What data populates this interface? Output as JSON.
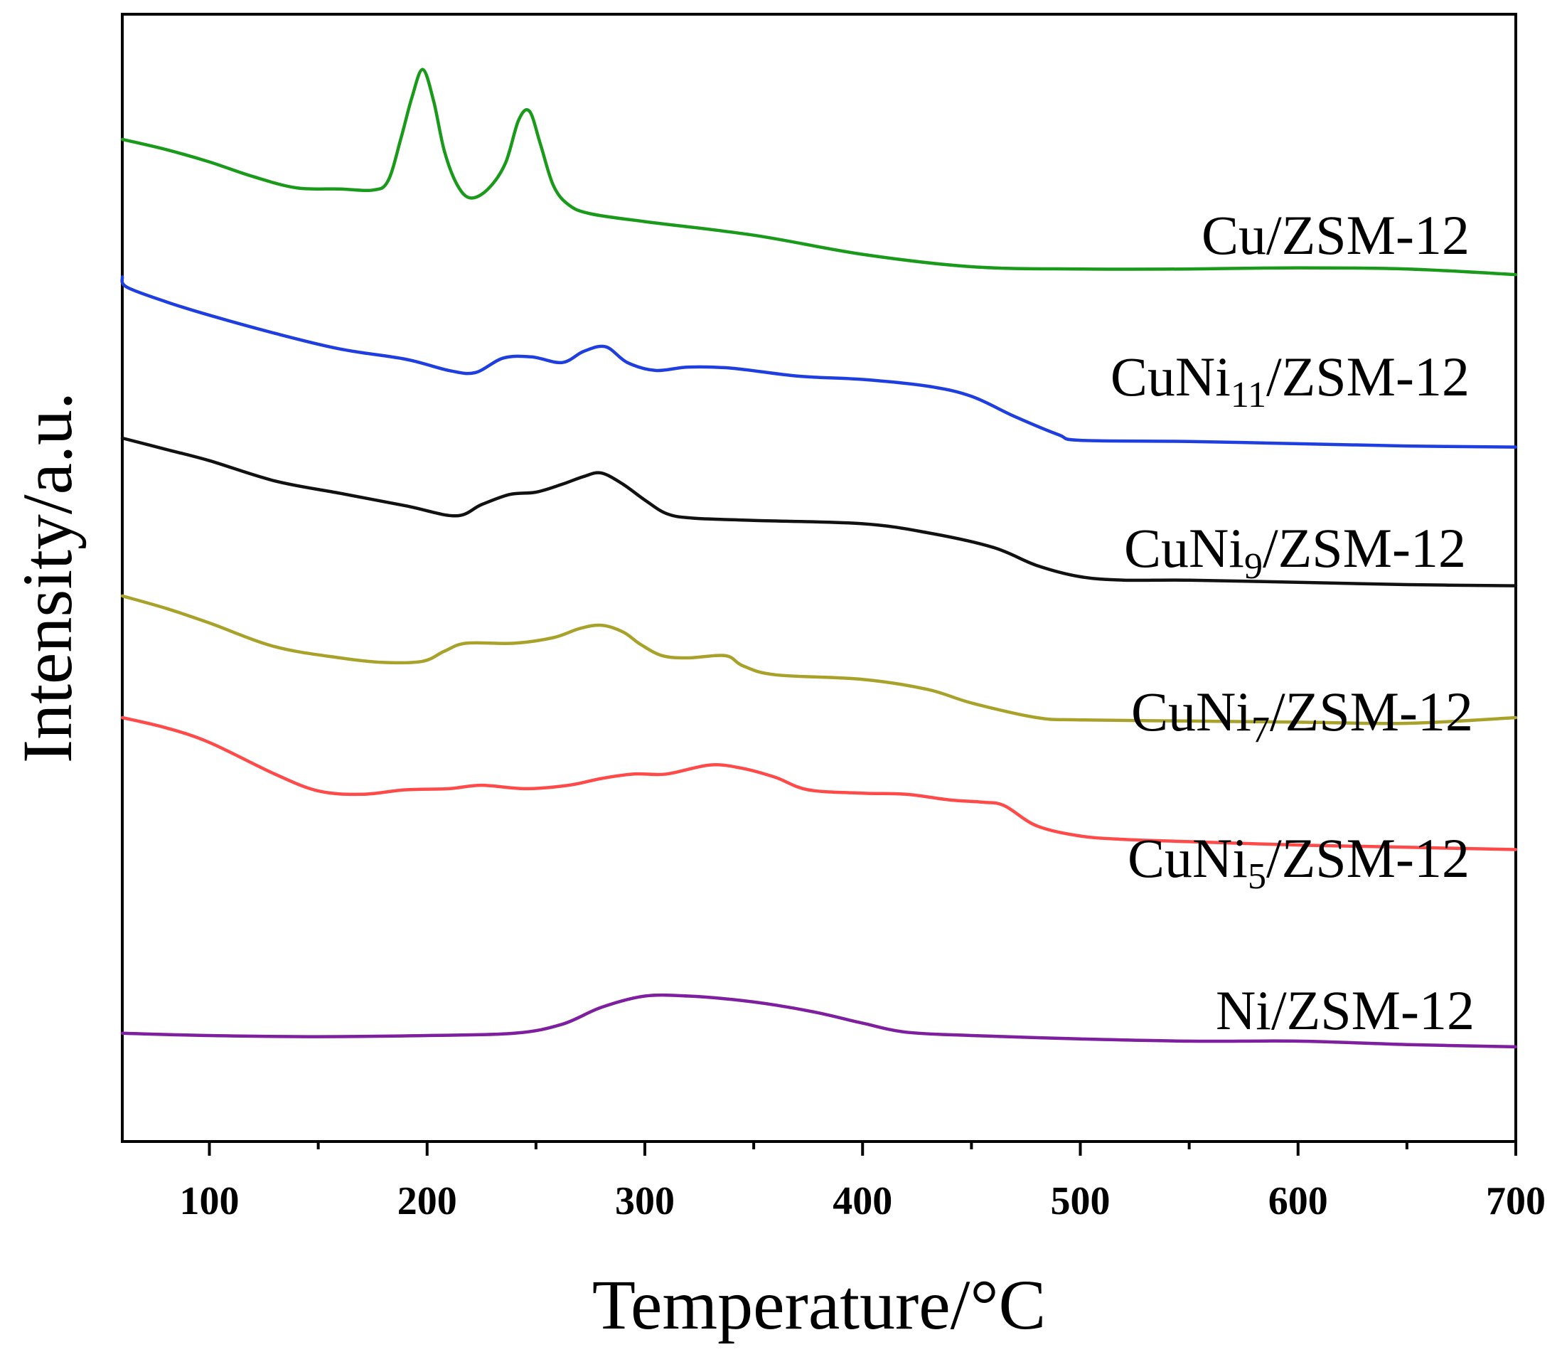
{
  "chart_data": {
    "type": "line",
    "title": "",
    "xlabel": "Temperature/°C",
    "ylabel": "Intensity/a.u.",
    "xlim": [
      60,
      700
    ],
    "ylim": [
      0,
      100
    ],
    "xticks": [
      100,
      200,
      300,
      400,
      500,
      600,
      700
    ],
    "xtick_labels": [
      "100",
      "200",
      "300",
      "400",
      "500",
      "600",
      "700"
    ],
    "minor_xticks": [
      150,
      250,
      350,
      450,
      550,
      650
    ],
    "grid": false,
    "legend": "inline labels at right of each curve",
    "series": [
      {
        "name": "Cu/ZSM-12",
        "label_main": "Cu/ZSM-12",
        "label_sub": "",
        "label_tail": "",
        "color": "#1a9a1a",
        "x": [
          60,
          80,
          100,
          120,
          140,
          160,
          175,
          182,
          188,
          193,
          198,
          203,
          208,
          214,
          220,
          228,
          236,
          242,
          247,
          252,
          258,
          265,
          275,
          300,
          350,
          400,
          450,
          500,
          550,
          600,
          650,
          700
        ],
        "y": [
          88.9,
          88.0,
          86.9,
          85.6,
          84.6,
          84.5,
          84.4,
          85.2,
          89.0,
          92.6,
          95.1,
          92.3,
          87.8,
          84.8,
          83.7,
          84.5,
          86.8,
          90.6,
          91.4,
          88.5,
          84.8,
          83.1,
          82.3,
          81.6,
          80.4,
          78.7,
          77.6,
          77.4,
          77.4,
          77.5,
          77.4,
          76.9
        ]
      },
      {
        "name": "CuNi11/ZSM-12",
        "label_main": "CuNi",
        "label_sub": "11",
        "label_tail": "/ZSM-12",
        "color": "#1e3ee0",
        "x": [
          60,
          62,
          80,
          100,
          130,
          160,
          190,
          210,
          222,
          235,
          248,
          262,
          272,
          282,
          292,
          305,
          320,
          340,
          370,
          400,
          430,
          450,
          470,
          490,
          500,
          550,
          600,
          650,
          700
        ],
        "y": [
          76.7,
          75.8,
          74.5,
          73.3,
          71.7,
          70.3,
          69.4,
          68.4,
          68.2,
          69.5,
          69.6,
          69.1,
          70.1,
          70.5,
          69.1,
          68.4,
          68.7,
          68.6,
          67.9,
          67.6,
          67.0,
          66.1,
          64.3,
          62.7,
          62.2,
          62.1,
          61.9,
          61.7,
          61.6
        ]
      },
      {
        "name": "CuNi9/ZSM-12",
        "label_main": "CuNi",
        "label_sub": "9",
        "label_tail": "/ZSM-12",
        "color": "#111111",
        "x": [
          60,
          80,
          100,
          130,
          160,
          190,
          213,
          225,
          238,
          250,
          262,
          272,
          280,
          290,
          300,
          310,
          322,
          350,
          400,
          430,
          460,
          480,
          500,
          520,
          550,
          600,
          650,
          700
        ],
        "y": [
          62.4,
          61.4,
          60.4,
          58.6,
          57.5,
          56.4,
          55.5,
          56.5,
          57.4,
          57.6,
          58.3,
          59.0,
          59.3,
          58.3,
          56.9,
          55.7,
          55.3,
          55.1,
          54.8,
          54.0,
          52.7,
          51.1,
          50.1,
          49.8,
          49.8,
          49.6,
          49.4,
          49.3
        ]
      },
      {
        "name": "CuNi7/ZSM-12",
        "label_main": "CuNi",
        "label_sub": "7",
        "label_tail": "/ZSM-12",
        "color": "#a8a22a",
        "x": [
          60,
          80,
          100,
          130,
          160,
          180,
          198,
          208,
          218,
          240,
          258,
          270,
          280,
          290,
          298,
          308,
          320,
          337,
          345,
          360,
          400,
          430,
          450,
          480,
          500,
          550,
          600,
          650,
          700
        ],
        "y": [
          48.4,
          47.3,
          46.0,
          43.9,
          42.9,
          42.5,
          42.6,
          43.5,
          44.2,
          44.2,
          44.7,
          45.5,
          45.8,
          45.2,
          44.1,
          43.1,
          42.9,
          43.1,
          42.2,
          41.4,
          41.0,
          40.1,
          38.9,
          37.6,
          37.4,
          37.3,
          37.2,
          37.1,
          37.6
        ]
      },
      {
        "name": "CuNi5/ZSM-12",
        "label_main": "CuNi",
        "label_sub": "5",
        "label_tail": "/ZSM-12",
        "color": "#ff4a4a",
        "x": [
          60,
          80,
          100,
          130,
          150,
          170,
          190,
          210,
          225,
          245,
          265,
          280,
          295,
          310,
          330,
          345,
          360,
          375,
          400,
          420,
          440,
          455,
          465,
          480,
          500,
          520,
          550,
          600,
          650,
          700
        ],
        "y": [
          37.6,
          36.7,
          35.4,
          32.6,
          31.1,
          30.8,
          31.2,
          31.3,
          31.6,
          31.3,
          31.6,
          32.2,
          32.6,
          32.6,
          33.4,
          33.1,
          32.3,
          31.2,
          30.9,
          30.8,
          30.3,
          30.1,
          29.8,
          28.0,
          27.1,
          26.8,
          26.6,
          26.3,
          26.1,
          25.9
        ]
      },
      {
        "name": "Ni/ZSM-12",
        "label_main": "Ni/ZSM-12",
        "label_sub": "",
        "label_tail": "",
        "color": "#7d1f9e",
        "x": [
          60,
          100,
          150,
          200,
          240,
          262,
          280,
          300,
          320,
          340,
          360,
          380,
          400,
          420,
          450,
          500,
          550,
          600,
          650,
          700
        ],
        "y": [
          9.6,
          9.4,
          9.3,
          9.4,
          9.6,
          10.4,
          11.9,
          12.9,
          12.9,
          12.6,
          12.1,
          11.4,
          10.5,
          9.7,
          9.4,
          9.1,
          8.9,
          8.9,
          8.6,
          8.4
        ]
      }
    ]
  }
}
